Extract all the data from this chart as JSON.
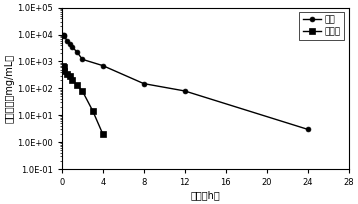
{
  "micelle_x": [
    0.083,
    0.167,
    0.25,
    0.5,
    0.75,
    1,
    1.5,
    2,
    4,
    8,
    12,
    24
  ],
  "micelle_y": [
    10000,
    9500,
    8500,
    6000,
    4500,
    3500,
    2200,
    1200,
    700,
    150,
    80,
    3
  ],
  "injection_x": [
    0.083,
    0.167,
    0.25,
    0.5,
    0.75,
    1,
    1.5,
    2,
    3,
    4
  ],
  "injection_y": [
    700,
    600,
    450,
    350,
    280,
    200,
    130,
    80,
    15,
    2
  ],
  "xlabel": "时间（h）",
  "ylabel": "血药浓度（mg/mL）",
  "legend_micelle": "胶束",
  "legend_injection": "注射液",
  "ylim_min": 0.1,
  "ylim_max": 100000,
  "xlim_min": 0,
  "xlim_max": 28,
  "xticks": [
    0,
    4,
    8,
    12,
    16,
    20,
    24,
    28
  ],
  "background_color": "#ffffff",
  "line_color": "#000000"
}
